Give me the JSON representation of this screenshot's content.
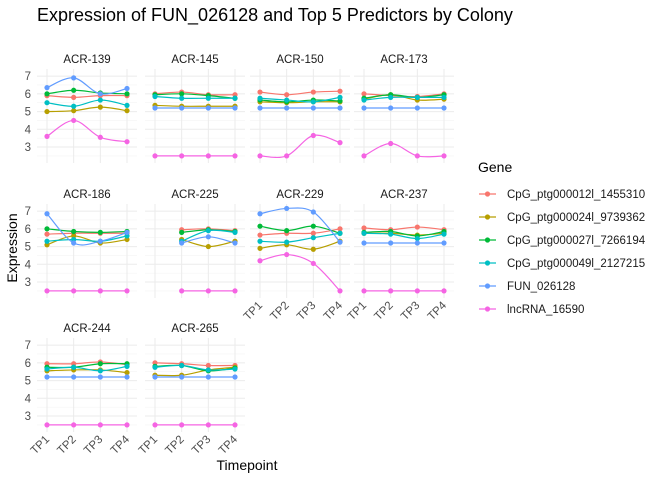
{
  "chart_data": {
    "type": "line",
    "title": "Expression of FUN_026128 and Top 5 Predictors by Colony",
    "xlabel": "Timepoint",
    "ylabel": "Expression",
    "x": [
      "TP1",
      "TP2",
      "TP3",
      "TP4"
    ],
    "ylim": [
      2.1,
      7.4
    ],
    "yticks": [
      3,
      4,
      5,
      6,
      7
    ],
    "grid": true,
    "legend_position": "right",
    "legend_title": "Gene",
    "series_meta": [
      {
        "name": "CpG_ptg000012l_1455310",
        "color": "#F8766D"
      },
      {
        "name": "CpG_ptg000024l_9739362",
        "color": "#B79F00"
      },
      {
        "name": "CpG_ptg000027l_7266194",
        "color": "#00BA38"
      },
      {
        "name": "CpG_ptg000049l_2127215",
        "color": "#00BFC4"
      },
      {
        "name": "FUN_026128",
        "color": "#619CFF"
      },
      {
        "name": "lncRNA_16590",
        "color": "#F564E3"
      }
    ],
    "panels": [
      {
        "colony": "ACR-139",
        "values": [
          [
            5.9,
            5.8,
            5.9,
            5.9
          ],
          [
            5.0,
            5.05,
            5.25,
            5.05
          ],
          [
            6.0,
            6.2,
            6.05,
            6.0
          ],
          [
            5.5,
            5.3,
            5.65,
            5.35
          ],
          [
            6.35,
            6.9,
            6.0,
            6.3
          ],
          [
            3.6,
            4.5,
            3.55,
            3.3
          ]
        ]
      },
      {
        "colony": "ACR-145",
        "values": [
          [
            6.0,
            6.1,
            5.95,
            5.95
          ],
          [
            5.35,
            5.3,
            5.3,
            5.3
          ],
          [
            5.95,
            6.0,
            5.9,
            5.75
          ],
          [
            5.85,
            5.75,
            5.75,
            5.75
          ],
          [
            5.2,
            5.2,
            5.2,
            5.2
          ],
          [
            2.5,
            2.5,
            2.5,
            2.5
          ]
        ]
      },
      {
        "colony": "ACR-150",
        "values": [
          [
            6.1,
            5.95,
            6.1,
            6.15
          ],
          [
            5.55,
            5.5,
            5.55,
            5.55
          ],
          [
            5.65,
            5.55,
            5.65,
            5.6
          ],
          [
            5.75,
            5.65,
            5.55,
            5.8
          ],
          [
            5.2,
            5.2,
            5.2,
            5.2
          ],
          [
            2.5,
            2.5,
            3.65,
            3.25
          ]
        ]
      },
      {
        "colony": "ACR-173",
        "values": [
          [
            6.0,
            5.9,
            5.85,
            6.0
          ],
          [
            5.7,
            5.95,
            5.65,
            5.7
          ],
          [
            5.75,
            5.95,
            5.8,
            5.95
          ],
          [
            5.65,
            5.8,
            5.8,
            5.8
          ],
          [
            5.2,
            5.2,
            5.2,
            5.2
          ],
          [
            2.5,
            3.2,
            2.5,
            2.5
          ]
        ]
      },
      {
        "colony": "ACR-186",
        "values": [
          [
            5.7,
            5.75,
            5.75,
            5.75
          ],
          [
            5.1,
            5.6,
            5.2,
            5.4
          ],
          [
            6.0,
            5.85,
            5.8,
            5.85
          ],
          [
            5.3,
            5.4,
            5.3,
            5.6
          ],
          [
            6.85,
            5.2,
            5.3,
            5.8
          ],
          [
            2.5,
            2.5,
            2.5,
            2.5
          ]
        ]
      },
      {
        "colony": "ACR-225",
        "values": [
          [
            5.95,
            6.0,
            5.9
          ],
          [
            5.4,
            5.0,
            5.3
          ],
          [
            5.8,
            5.95,
            5.85
          ],
          [
            5.3,
            5.9,
            5.8
          ],
          [
            5.2,
            5.55,
            5.2
          ],
          [
            2.5,
            2.5,
            2.5
          ]
        ]
      },
      {
        "colony": "ACR-229",
        "values": [
          [
            5.65,
            5.75,
            5.75,
            6.0
          ],
          [
            4.9,
            5.1,
            4.85,
            5.3
          ],
          [
            6.15,
            5.9,
            6.15,
            5.75
          ],
          [
            5.3,
            5.25,
            5.5,
            5.75
          ],
          [
            6.85,
            7.15,
            6.95,
            5.25
          ],
          [
            4.2,
            4.55,
            4.05,
            2.5
          ]
        ]
      },
      {
        "colony": "ACR-237",
        "values": [
          [
            6.05,
            5.95,
            6.1,
            5.95
          ],
          [
            5.75,
            5.75,
            5.65,
            5.75
          ],
          [
            5.8,
            5.85,
            5.6,
            5.85
          ],
          [
            5.75,
            5.7,
            5.45,
            5.7
          ],
          [
            5.2,
            5.2,
            5.2,
            5.2
          ],
          [
            2.5,
            2.5,
            2.5,
            2.5
          ]
        ]
      },
      {
        "colony": "ACR-244",
        "values": [
          [
            5.95,
            5.95,
            6.05,
            5.9
          ],
          [
            5.55,
            5.6,
            5.6,
            5.45
          ],
          [
            5.75,
            5.75,
            5.95,
            5.95
          ],
          [
            5.65,
            5.75,
            5.55,
            5.8
          ],
          [
            5.2,
            5.2,
            5.2,
            5.2
          ],
          [
            2.5,
            2.5,
            2.5,
            2.5
          ]
        ]
      },
      {
        "colony": "ACR-265",
        "values": [
          [
            6.0,
            5.95,
            5.85,
            5.85
          ],
          [
            5.3,
            5.3,
            5.6,
            5.75
          ],
          [
            5.8,
            5.85,
            5.55,
            5.7
          ],
          [
            5.75,
            5.85,
            5.6,
            5.65
          ],
          [
            5.2,
            5.2,
            5.2,
            5.2
          ],
          [
            2.5,
            2.5,
            2.5,
            2.5
          ]
        ]
      }
    ]
  }
}
